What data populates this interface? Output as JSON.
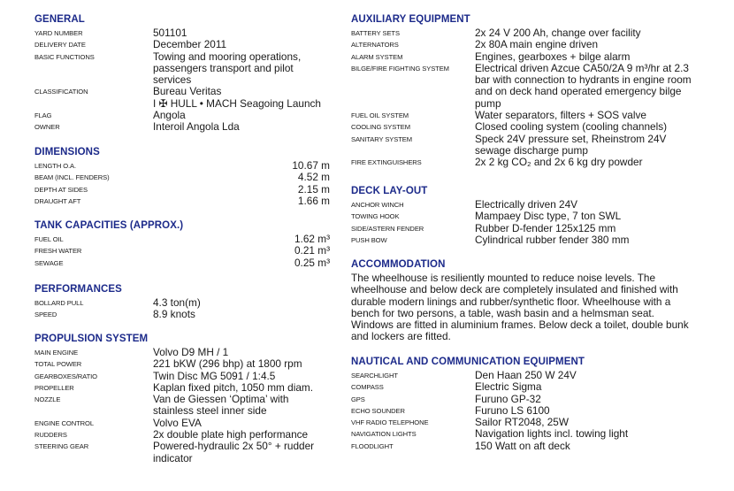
{
  "general": {
    "title": "GENERAL",
    "rows": [
      {
        "label": "YARD NUMBER",
        "value": "501101"
      },
      {
        "label": "DELIVERY DATE",
        "value": "December 2011"
      },
      {
        "label": "BASIC FUNCTIONS",
        "value": "Towing and mooring operations, passengers transport and pilot services"
      },
      {
        "label": "CLASSIFICATION",
        "value": "Bureau Veritas\nI ✠ HULL • MACH Seagoing Launch"
      },
      {
        "label": "FLAG",
        "value": "Angola"
      },
      {
        "label": "OWNER",
        "value": "Interoil Angola Lda"
      }
    ]
  },
  "dimensions": {
    "title": "DIMENSIONS",
    "rows": [
      {
        "label": "LENGTH O.A.",
        "value": "10.67 m"
      },
      {
        "label": "BEAM (INCL. FENDERS)",
        "value": "4.52 m"
      },
      {
        "label": "DEPTH AT SIDES",
        "value": "2.15 m"
      },
      {
        "label": "DRAUGHT AFT",
        "value": "1.66 m"
      }
    ]
  },
  "tanks": {
    "title": "TANK CAPACITIES (APPROX.)",
    "rows": [
      {
        "label": "FUEL OIL",
        "value": "1.62 m³"
      },
      {
        "label": "FRESH WATER",
        "value": "0.21 m³"
      },
      {
        "label": "SEWAGE",
        "value": "0.25 m³"
      }
    ]
  },
  "performances": {
    "title": "PERFORMANCES",
    "rows": [
      {
        "label": "BOLLARD PULL",
        "value": "4.3 ton(m)"
      },
      {
        "label": "SPEED",
        "value": "8.9 knots"
      }
    ]
  },
  "propulsion": {
    "title": "PROPULSION SYSTEM",
    "rows": [
      {
        "label": "MAIN ENGINE",
        "value": "Volvo D9 MH / 1"
      },
      {
        "label": "TOTAL POWER",
        "value": "221 bKW (296 bhp) at 1800 rpm"
      },
      {
        "label": "GEARBOXES/RATIO",
        "value": "Twin Disc MG 5091 / 1:4.5"
      },
      {
        "label": "PROPELLER",
        "value": "Kaplan fixed pitch, 1050 mm diam."
      },
      {
        "label": "NOZZLE",
        "value": "Van de Giessen ‘Optima’ with stainless steel inner side"
      },
      {
        "label": "ENGINE CONTROL",
        "value": "Volvo EVA"
      },
      {
        "label": "RUDDERS",
        "value": "2x double plate high performance"
      },
      {
        "label": "STEERING GEAR",
        "value": "Powered-hydraulic 2x 50° + rudder indicator"
      }
    ]
  },
  "auxiliary": {
    "title": "AUXILIARY EQUIPMENT",
    "rows": [
      {
        "label": "BATTERY SETS",
        "value": "2x 24 V 200 Ah, change over facility"
      },
      {
        "label": "ALTERNATORS",
        "value": "2x 80A main engine driven"
      },
      {
        "label": "ALARM SYSTEM",
        "value": "Engines, gearboxes + bilge alarm"
      },
      {
        "label": "BILGE/FIRE FIGHTING SYSTEM",
        "value": "Electrical driven Azcue CA50/2A 9 m³/hr at 2.3 bar with connection to hydrants in engine room and on deck hand operated emergency bilge pump"
      },
      {
        "label": "FUEL OIL SYSTEM",
        "value": "Water separators, filters + SOS valve"
      },
      {
        "label": "COOLING SYSTEM",
        "value": "Closed cooling system (cooling channels)"
      },
      {
        "label": "SANITARY SYSTEM",
        "value": "Speck 24V pressure set, Rheinstrom 24V sewage discharge pump"
      },
      {
        "label": "FIRE EXTINGUISHERS",
        "value": "2x 2 kg CO₂ and 2x 6 kg dry powder"
      }
    ]
  },
  "deck": {
    "title": "DECK LAY-OUT",
    "rows": [
      {
        "label": "ANCHOR WINCH",
        "value": "Electrically driven 24V"
      },
      {
        "label": "TOWING HOOK",
        "value": "Mampaey Disc type, 7 ton SWL"
      },
      {
        "label": "SIDE/ASTERN FENDER",
        "value": "Rubber D-fender 125x125 mm"
      },
      {
        "label": "PUSH BOW",
        "value": "Cylindrical rubber fender 380 mm"
      }
    ]
  },
  "accommodation": {
    "title": "ACCOMMODATION",
    "text": "The wheelhouse is resiliently mounted to reduce noise levels. The wheelhouse and below deck are completely insulated and finished with durable modern linings and rubber/synthetic floor. Wheelhouse with a bench for two persons, a table, wash basin and a helmsman seat. Windows are fitted in aluminium frames.  Below deck a toilet, double bunk and lockers are fitted."
  },
  "nautical": {
    "title": "NAUTICAL AND COMMUNICATION EQUIPMENT",
    "rows": [
      {
        "label": "SEARCHLIGHT",
        "value": "Den Haan 250 W 24V"
      },
      {
        "label": "COMPASS",
        "value": "Electric Sigma"
      },
      {
        "label": "GPS",
        "value": "Furuno GP-32"
      },
      {
        "label": "ECHO SOUNDER",
        "value": "Furuno LS 6100"
      },
      {
        "label": "VHF RADIO TELEPHONE",
        "value": "Sailor RT2048, 25W"
      },
      {
        "label": "NAVIGATION LIGHTS",
        "value": "Navigation lights incl. towing light"
      },
      {
        "label": "FLOODLIGHT",
        "value": "150 Watt on aft deck"
      }
    ]
  },
  "colors": {
    "heading": "#1c2a8a",
    "text": "#1a1a1a"
  }
}
